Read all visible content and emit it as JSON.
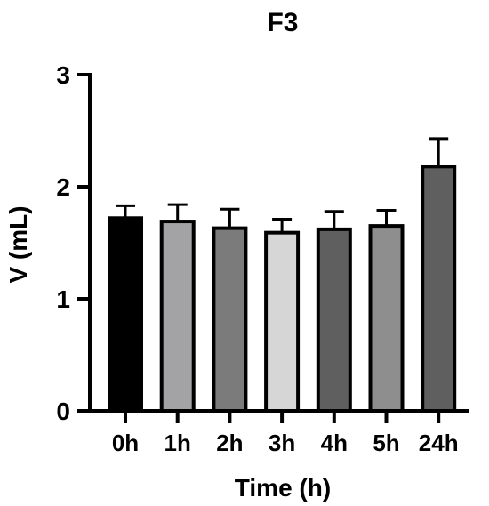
{
  "chart_data": {
    "type": "bar",
    "title": "F3",
    "xlabel": "Time (h)",
    "ylabel": "V (mL)",
    "ylim": [
      0,
      3
    ],
    "yticks": [
      0,
      1,
      2,
      3
    ],
    "categories": [
      "0h",
      "1h",
      "2h",
      "3h",
      "4h",
      "5h",
      "24h"
    ],
    "values": [
      1.72,
      1.69,
      1.63,
      1.59,
      1.62,
      1.65,
      2.18
    ],
    "errors": [
      0.11,
      0.15,
      0.17,
      0.12,
      0.16,
      0.14,
      0.25
    ],
    "colors": [
      "#000000",
      "#a3a3a6",
      "#7b7b7b",
      "#d6d6d6",
      "#5f5f5f",
      "#8e8e8e",
      "#5f5f5f"
    ],
    "grid": false,
    "legend": "none"
  }
}
